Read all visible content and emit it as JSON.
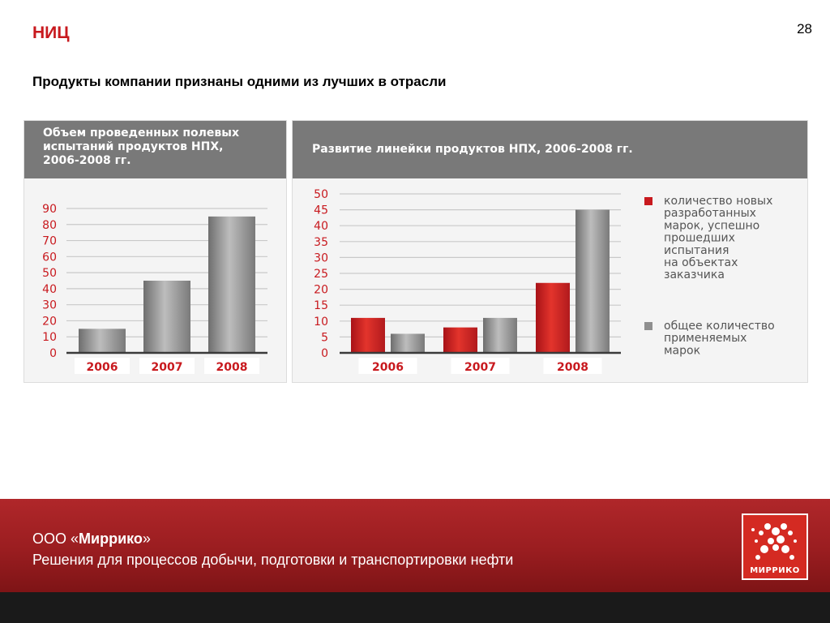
{
  "header": {
    "section": "НИЦ",
    "page_number": "28",
    "subtitle": "Продукты компании признаны одними из лучших в отрасли"
  },
  "colors": {
    "accent_red": "#c8191e",
    "series_gray": "#8f8f8f",
    "panel_header": "#797979",
    "footer_red": "#9a1d20"
  },
  "chart_data": [
    {
      "type": "bar",
      "title_lines": [
        "Объем проведенных полевых",
        "испытаний продуктов НПХ,",
        "2006-2008 гг."
      ],
      "categories": [
        "2006",
        "2007",
        "2008"
      ],
      "values": [
        15,
        45,
        85
      ],
      "yticks": [
        0,
        10,
        20,
        30,
        40,
        50,
        60,
        70,
        80,
        90
      ],
      "ylim": [
        0,
        90
      ],
      "grid": true,
      "xlabel": "",
      "ylabel": ""
    },
    {
      "type": "bar",
      "title": "Развитие линейки продуктов НПХ, 2006-2008 гг.",
      "categories": [
        "2006",
        "2007",
        "2008"
      ],
      "series": [
        {
          "name": "количество новых разработанных марок, успешно прошедших испытания на объектах заказчика",
          "values": [
            11,
            8,
            22
          ],
          "color": "#c8191e"
        },
        {
          "name": "общее количество применяемых марок",
          "values": [
            6,
            11,
            45
          ],
          "color": "#8f8f8f"
        }
      ],
      "yticks": [
        0,
        5,
        10,
        15,
        20,
        25,
        30,
        35,
        40,
        45,
        50
      ],
      "ylim": [
        0,
        50
      ],
      "grid": true,
      "legend_position": "right",
      "legend": [
        {
          "lines": [
            "количество новых",
            "разработанных",
            "марок, успешно",
            "прошедших",
            "испытания",
            "на объектах",
            "заказчика"
          ]
        },
        {
          "lines": [
            "общее количество",
            "применяемых",
            "марок"
          ]
        }
      ],
      "xlabel": "",
      "ylabel": ""
    }
  ],
  "footer": {
    "company_prefix": "ООО «",
    "company_name": "Миррико",
    "company_suffix": "»",
    "tagline": "Решения для процессов добычи, подготовки и транспортировки нефти",
    "logo_text": "МИРРИКО"
  }
}
